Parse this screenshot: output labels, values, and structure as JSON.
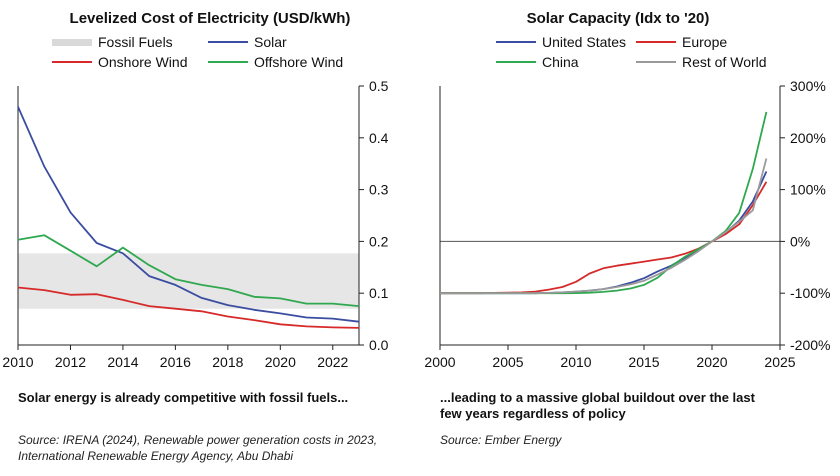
{
  "chart_data": [
    {
      "type": "line",
      "title": "Levelized Cost of Electricity (USD/kWh)",
      "band": {
        "name": "Fossil Fuels",
        "range": [
          0.07,
          0.177
        ],
        "color": "#e6e6e6"
      },
      "x": [
        2010,
        2011,
        2012,
        2013,
        2014,
        2015,
        2016,
        2017,
        2018,
        2019,
        2020,
        2021,
        2022,
        2023
      ],
      "series": [
        {
          "name": "Solar",
          "color": "#3b4da0",
          "values": [
            0.46,
            0.345,
            0.256,
            0.197,
            0.177,
            0.133,
            0.116,
            0.091,
            0.077,
            0.068,
            0.061,
            0.053,
            0.051,
            0.045
          ]
        },
        {
          "name": "Onshore Wind",
          "color": "#d62a2a",
          "values": [
            0.111,
            0.106,
            0.097,
            0.098,
            0.087,
            0.075,
            0.07,
            0.065,
            0.055,
            0.048,
            0.04,
            0.036,
            0.034,
            0.033
          ]
        },
        {
          "name": "Offshore Wind",
          "color": "#2fa84f",
          "values": [
            0.203,
            0.212,
            0.182,
            0.152,
            0.188,
            0.154,
            0.127,
            0.116,
            0.108,
            0.093,
            0.09,
            0.08,
            0.08,
            0.075
          ]
        }
      ],
      "xlim": [
        2010,
        2023
      ],
      "ylim": [
        0,
        0.5
      ],
      "xticks": [
        "2010",
        "2012",
        "2014",
        "2016",
        "2018",
        "2020",
        "2022"
      ],
      "yticks": [
        "0.0",
        "0.1",
        "0.2",
        "0.3",
        "0.4",
        "0.5"
      ],
      "yaxis_side": "right"
    },
    {
      "type": "line",
      "title": "Solar Capacity (Idx to '20)",
      "x": [
        2000,
        2001,
        2002,
        2003,
        2004,
        2005,
        2006,
        2007,
        2008,
        2009,
        2010,
        2011,
        2012,
        2013,
        2014,
        2015,
        2016,
        2017,
        2018,
        2019,
        2020,
        2021,
        2022,
        2023,
        2024
      ],
      "series": [
        {
          "name": "United States",
          "color": "#3b4da0",
          "values": [
            -100,
            -100,
            -100,
            -100,
            -100,
            -100,
            -100,
            -100,
            -99.5,
            -98.5,
            -97,
            -95,
            -92,
            -87,
            -80,
            -71,
            -58,
            -47,
            -32,
            -17,
            0,
            17,
            40,
            77,
            135
          ]
        },
        {
          "name": "Europe",
          "color": "#d62a2a",
          "values": [
            -100,
            -100,
            -100,
            -100,
            -99.5,
            -99,
            -98.5,
            -97,
            -93,
            -88,
            -78,
            -62,
            -52,
            -47,
            -43,
            -39,
            -35,
            -31,
            -24,
            -14,
            0,
            14,
            33,
            70,
            115
          ]
        },
        {
          "name": "China",
          "color": "#2fa84f",
          "values": [
            -100,
            -100,
            -100,
            -100,
            -100,
            -100,
            -100,
            -100,
            -100,
            -100,
            -99.8,
            -99,
            -97.5,
            -95,
            -91,
            -84,
            -70,
            -48,
            -30,
            -15,
            0,
            20,
            55,
            140,
            250
          ]
        },
        {
          "name": "Rest of World",
          "color": "#9a9a9a",
          "values": [
            -100,
            -100,
            -100,
            -100,
            -100,
            -100,
            -100,
            -100,
            -99.5,
            -98.5,
            -97,
            -95,
            -92,
            -88,
            -83,
            -76,
            -64,
            -51,
            -36,
            -19,
            0,
            18,
            38,
            60,
            160
          ]
        }
      ],
      "xlim": [
        2000,
        2025
      ],
      "ylim": [
        -200,
        300
      ],
      "xticks": [
        "2000",
        "2005",
        "2010",
        "2015",
        "2020",
        "2025"
      ],
      "yticks": [
        "-200%",
        "-100%",
        "0%",
        "100%",
        "200%",
        "300%"
      ],
      "yaxis_side": "right"
    }
  ],
  "captions": {
    "left": "Solar energy is already competitive with fossil fuels...",
    "right": "...leading to a massive global buildout over the last few years regardless of policy"
  },
  "sources": {
    "left": "Source: IRENA (2024), Renewable power generation costs in 2023, International Renewable Energy Agency, Abu Dhabi",
    "right": "Source: Ember Energy"
  }
}
